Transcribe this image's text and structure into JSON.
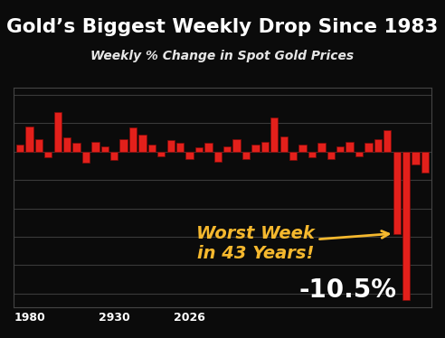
{
  "chart_data": {
    "type": "bar",
    "title": "Gold’s Biggest Weekly Drop Since 1983",
    "subtitle": "Weekly % Change in Spot Gold Prices",
    "categories": [
      null,
      "1980",
      null,
      null,
      null,
      null,
      null,
      null,
      null,
      null,
      "2930",
      null,
      null,
      null,
      null,
      null,
      null,
      null,
      "2026",
      null,
      null,
      null,
      null,
      null,
      null,
      null,
      null,
      null,
      null,
      null,
      null,
      null,
      null,
      null,
      null,
      null,
      null,
      null,
      null,
      null,
      null,
      null,
      null,
      null
    ],
    "values": [
      0.5,
      1.8,
      0.9,
      -0.4,
      2.8,
      1.0,
      0.6,
      -0.8,
      0.7,
      0.4,
      -0.6,
      0.9,
      1.7,
      1.2,
      0.5,
      -0.3,
      0.8,
      0.6,
      -0.5,
      0.3,
      0.6,
      -0.7,
      0.4,
      0.9,
      -0.5,
      0.5,
      0.7,
      2.4,
      1.1,
      -0.6,
      0.5,
      -0.4,
      0.6,
      -0.5,
      0.4,
      0.7,
      -0.3,
      0.6,
      0.9,
      1.5,
      -5.8,
      -10.5,
      -0.9,
      -1.5
    ],
    "color": "#e3201b",
    "ylim": [
      -11,
      4.5
    ],
    "yticks": [
      -10,
      -8,
      -6,
      -4,
      -2,
      0,
      2,
      4
    ],
    "grid": true,
    "tick_labels": "x",
    "annotations": [
      {
        "text": "Worst Week\nin 43 Years!"
      },
      {
        "text": "-10.5%"
      }
    ]
  }
}
